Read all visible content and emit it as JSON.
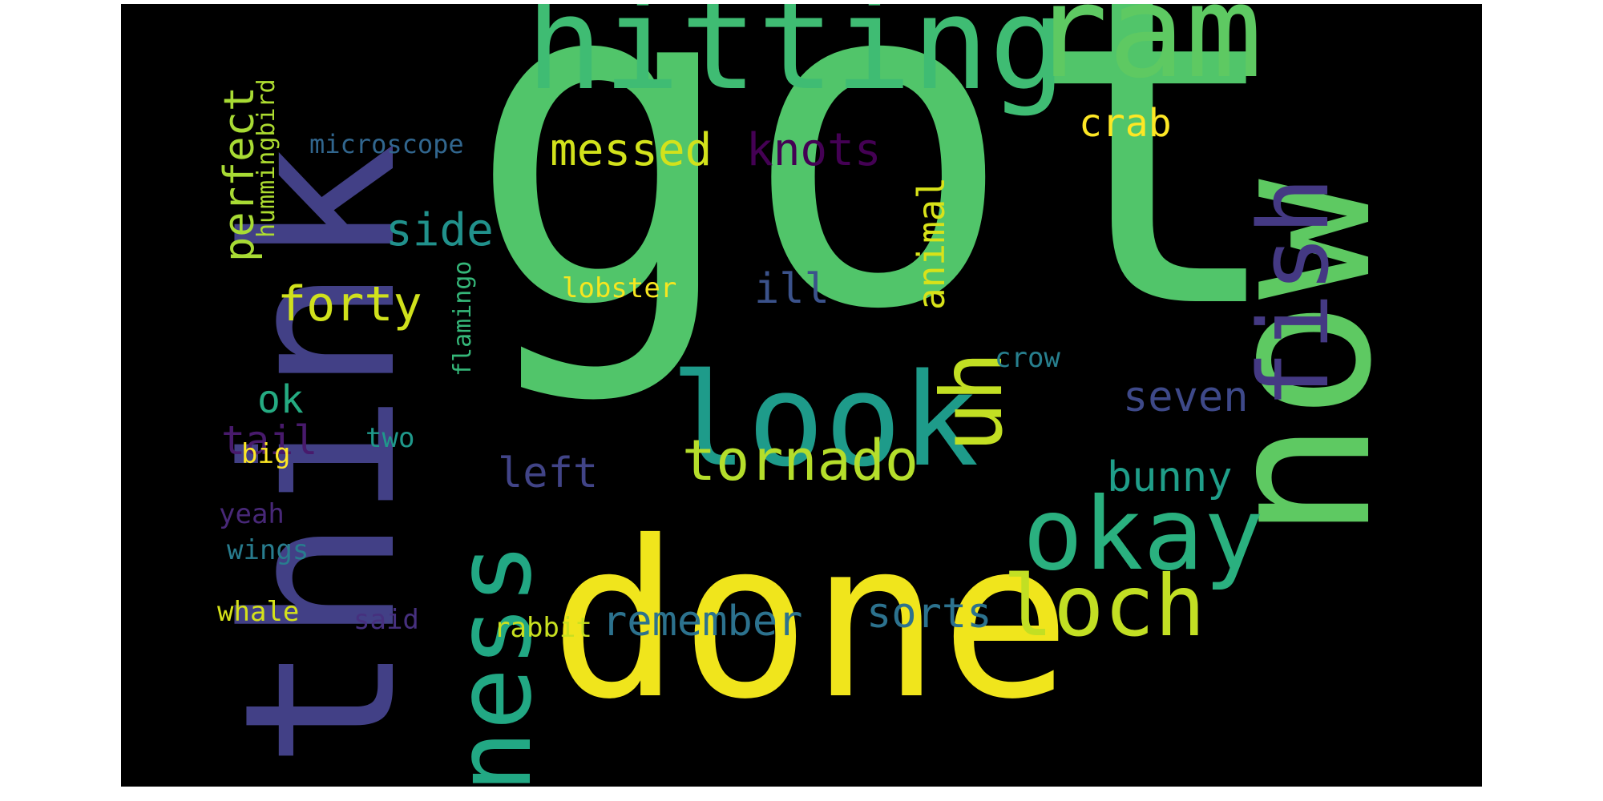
{
  "words": [
    {
      "text": "got",
      "color": "#51c56a"
    },
    {
      "text": "think",
      "color": "#424086"
    },
    {
      "text": "done",
      "color": "#f0e51c"
    },
    {
      "text": "now",
      "color": "#5ec962"
    },
    {
      "text": "hitting",
      "color": "#3fbc73"
    },
    {
      "text": "ram",
      "color": "#5ec962"
    },
    {
      "text": "look",
      "color": "#1e9b8a"
    },
    {
      "text": "fish",
      "color": "#443983"
    },
    {
      "text": "ness",
      "color": "#22a884"
    },
    {
      "text": "uh",
      "color": "#c2df23"
    },
    {
      "text": "okay",
      "color": "#2ab07f"
    },
    {
      "text": "loch",
      "color": "#c2df23"
    },
    {
      "text": "tornado",
      "color": "#b5de2b"
    },
    {
      "text": "remember",
      "color": "#2c728e"
    },
    {
      "text": "sorts",
      "color": "#2c728e"
    },
    {
      "text": "messed",
      "color": "#d2e21b"
    },
    {
      "text": "knots",
      "color": "#440154"
    },
    {
      "text": "crab",
      "color": "#fde725"
    },
    {
      "text": "side",
      "color": "#21918c"
    },
    {
      "text": "forty",
      "color": "#d0e11c"
    },
    {
      "text": "perfect",
      "color": "#a8db34"
    },
    {
      "text": "ill",
      "color": "#3b528b"
    },
    {
      "text": "animal",
      "color": "#d8e219"
    },
    {
      "text": "lobster",
      "color": "#f6e620"
    },
    {
      "text": "seven",
      "color": "#3e4989"
    },
    {
      "text": "bunny",
      "color": "#1f9e89"
    },
    {
      "text": "left",
      "color": "#414487"
    },
    {
      "text": "ok",
      "color": "#25ab82"
    },
    {
      "text": "tail",
      "color": "#481a6c"
    },
    {
      "text": "crow",
      "color": "#277f8e"
    },
    {
      "text": "two",
      "color": "#1f988b"
    },
    {
      "text": "big",
      "color": "#fde725"
    },
    {
      "text": "microscope",
      "color": "#31668e"
    },
    {
      "text": "hummingbird",
      "color": "#addc30"
    },
    {
      "text": "flamingo",
      "color": "#35b779"
    },
    {
      "text": "yeah",
      "color": "#482878"
    },
    {
      "text": "wings",
      "color": "#287c8e"
    },
    {
      "text": "whale",
      "color": "#d5e21a"
    },
    {
      "text": "said",
      "color": "#46307e"
    },
    {
      "text": "rabbit",
      "color": "#c8e020"
    }
  ]
}
